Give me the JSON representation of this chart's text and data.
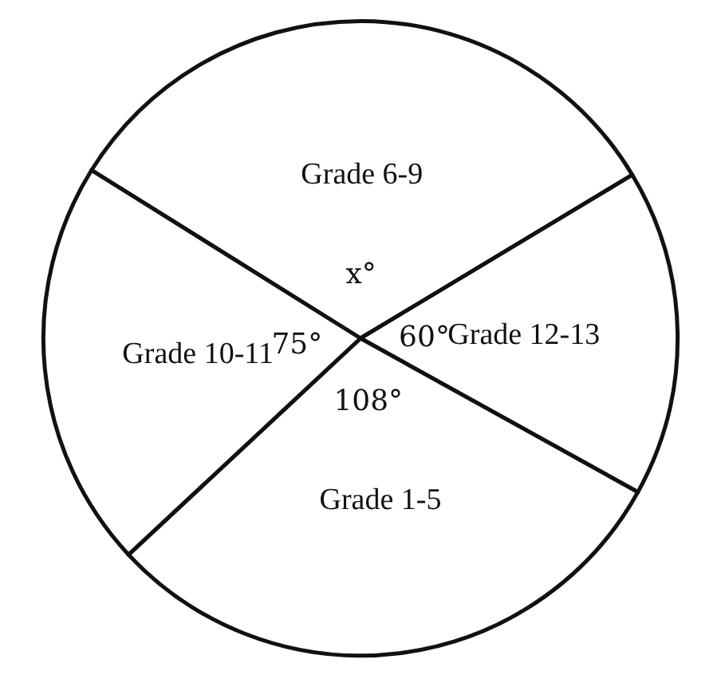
{
  "chart_data": {
    "type": "pie",
    "categories": [
      "Grade 6-9",
      "Grade 12-13",
      "Grade 1-5",
      "Grade 10-11"
    ],
    "values": [
      117,
      60,
      108,
      75
    ],
    "value_labels": [
      "x°",
      "60°",
      "108°",
      "75°"
    ],
    "colors": [
      "#ffffff",
      "#ffffff",
      "#ffffff",
      "#ffffff"
    ],
    "legend": false
  }
}
